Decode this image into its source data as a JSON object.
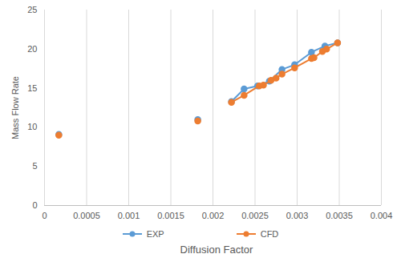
{
  "chart_data": {
    "type": "line",
    "x_label": "Diffusion Factor",
    "y_label": "Mass Flow Rate",
    "xlim": [
      0,
      0.004
    ],
    "xticks": [
      0,
      0.0005,
      0.001,
      0.0015,
      0.002,
      0.0025,
      0.003,
      0.0035,
      0.004
    ],
    "ylim": [
      0,
      25
    ],
    "yticks": [
      0,
      5,
      10,
      15,
      20,
      25
    ],
    "grid": "x",
    "legend": "bottom",
    "marker": "circle",
    "series": [
      {
        "name": "EXP",
        "color": "#5B9BD5",
        "x": [
          0.00017,
          null,
          0.00182,
          null,
          0.00222,
          0.00237,
          0.00253,
          0.00267,
          0.00282,
          0.00297,
          0.00317,
          0.00333,
          0.00348
        ],
        "values": [
          9.1,
          null,
          11.0,
          null,
          13.3,
          14.9,
          15.3,
          15.9,
          17.4,
          18.0,
          19.6,
          20.4,
          20.8
        ]
      },
      {
        "name": "CFD",
        "color": "#ED7D31",
        "x": [
          0.00017,
          null,
          0.00182,
          null,
          0.00222,
          0.00237,
          0.00255,
          0.0026,
          0.00269,
          0.00275,
          0.00282,
          0.00297,
          0.00317,
          0.0032,
          0.0033,
          0.00335,
          0.00348
        ],
        "values": [
          9.0,
          null,
          10.8,
          null,
          13.2,
          14.1,
          15.3,
          15.4,
          16.0,
          16.3,
          16.8,
          17.6,
          18.8,
          18.9,
          19.7,
          20.0,
          20.8
        ]
      }
    ]
  }
}
